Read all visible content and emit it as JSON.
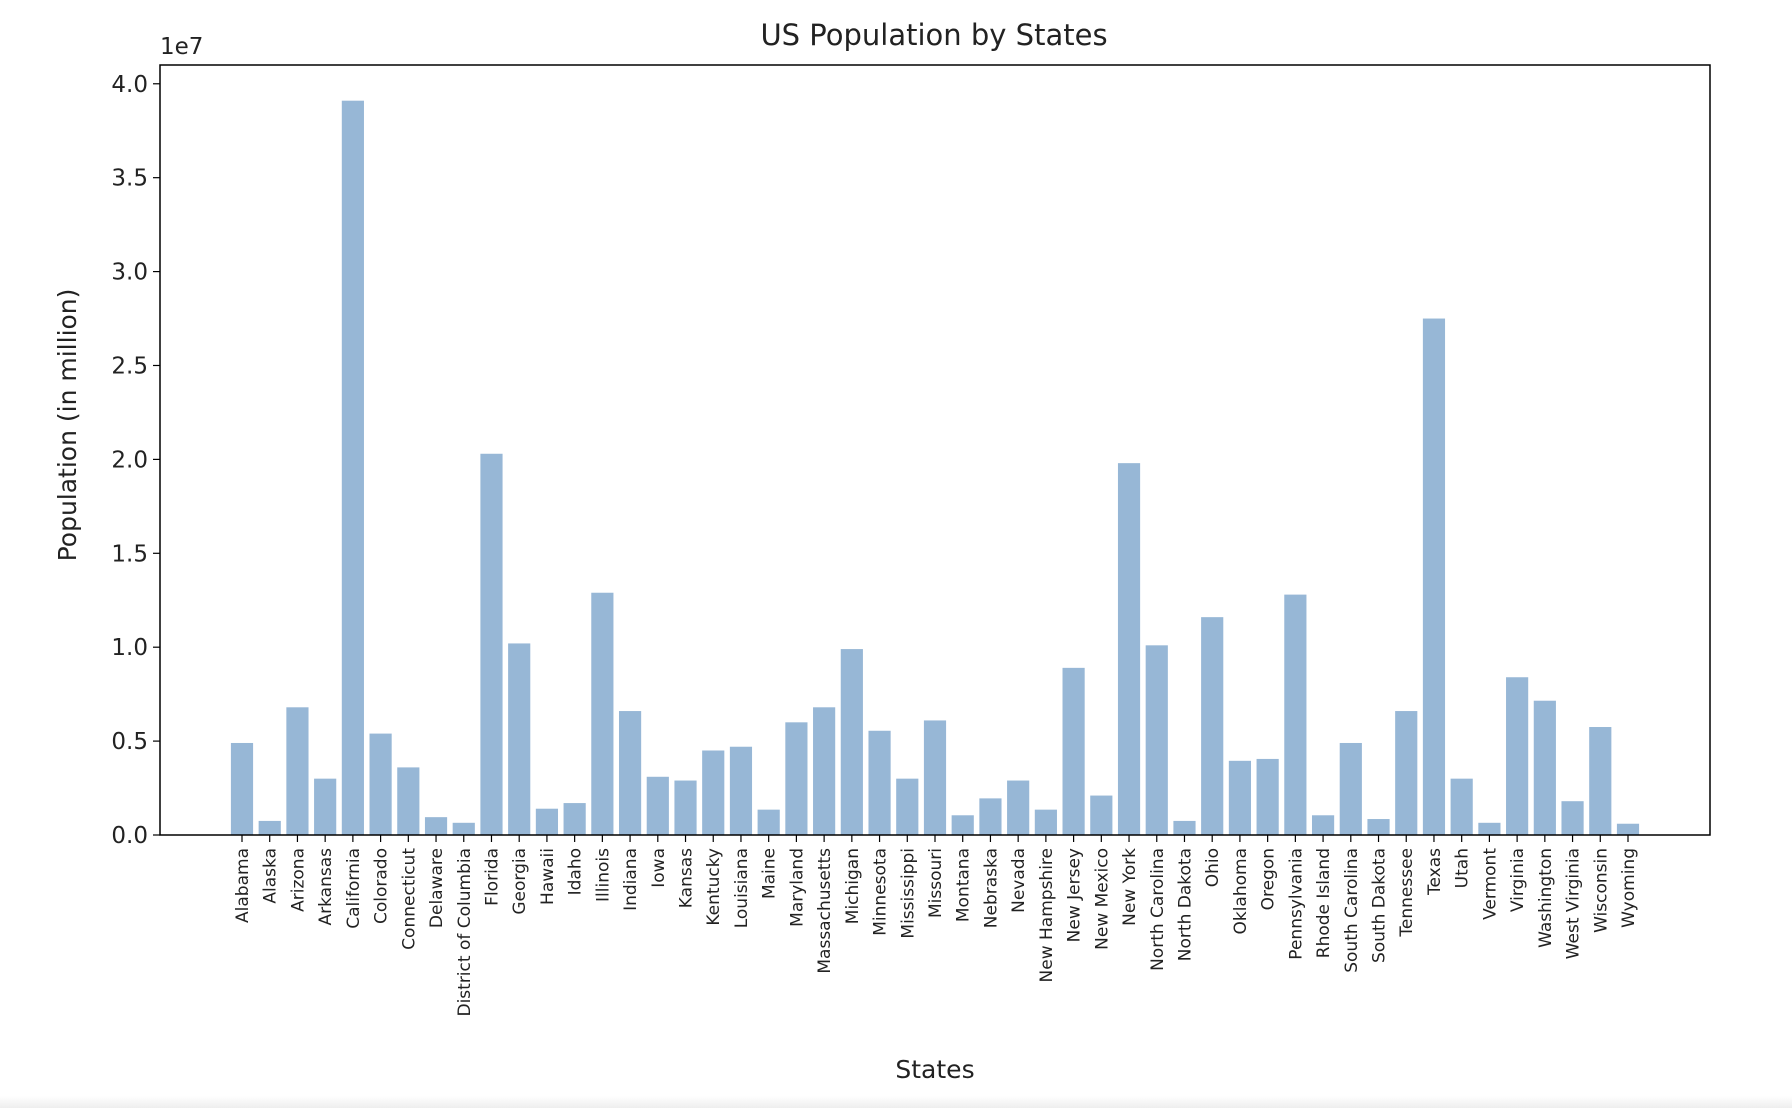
{
  "chart_data": {
    "type": "bar",
    "title": "US Population by States",
    "xlabel": "States",
    "ylabel": "Population (in million)",
    "offset_text": "1e7",
    "ylim": [
      0,
      41000000
    ],
    "y_ticks": [
      0,
      5000000,
      10000000,
      15000000,
      20000000,
      25000000,
      30000000,
      35000000,
      40000000
    ],
    "y_tick_labels": [
      "0.0",
      "0.5",
      "1.0",
      "1.5",
      "2.0",
      "2.5",
      "3.0",
      "3.5",
      "4.0"
    ],
    "grid": false,
    "bar_color": "#97b7d6",
    "categories": [
      "Alabama",
      "Alaska",
      "Arizona",
      "Arkansas",
      "California",
      "Colorado",
      "Connecticut",
      "Delaware",
      "District of Columbia",
      "Florida",
      "Georgia",
      "Hawaii",
      "Idaho",
      "Illinois",
      "Indiana",
      "Iowa",
      "Kansas",
      "Kentucky",
      "Louisiana",
      "Maine",
      "Maryland",
      "Massachusetts",
      "Michigan",
      "Minnesota",
      "Mississippi",
      "Missouri",
      "Montana",
      "Nebraska",
      "Nevada",
      "New Hampshire",
      "New Jersey",
      "New Mexico",
      "New York",
      "North Carolina",
      "North Dakota",
      "Ohio",
      "Oklahoma",
      "Oregon",
      "Pennsylvania",
      "Rhode Island",
      "South Carolina",
      "South Dakota",
      "Tennessee",
      "Texas",
      "Utah",
      "Vermont",
      "Virginia",
      "Washington",
      "West Virginia",
      "Wisconsin",
      "Wyoming"
    ],
    "values": [
      4900000,
      750000,
      6800000,
      3000000,
      39100000,
      5400000,
      3600000,
      950000,
      650000,
      20300000,
      10200000,
      1400000,
      1700000,
      12900000,
      6600000,
      3100000,
      2900000,
      4500000,
      4700000,
      1350000,
      6000000,
      6800000,
      9900000,
      5550000,
      3000000,
      6100000,
      1050000,
      1950000,
      2900000,
      1350000,
      8900000,
      2100000,
      19800000,
      10100000,
      750000,
      11600000,
      3950000,
      4050000,
      12800000,
      1050000,
      4900000,
      850000,
      6600000,
      27500000,
      3000000,
      650000,
      8400000,
      7150000,
      1800000,
      5750000,
      600000
    ]
  }
}
